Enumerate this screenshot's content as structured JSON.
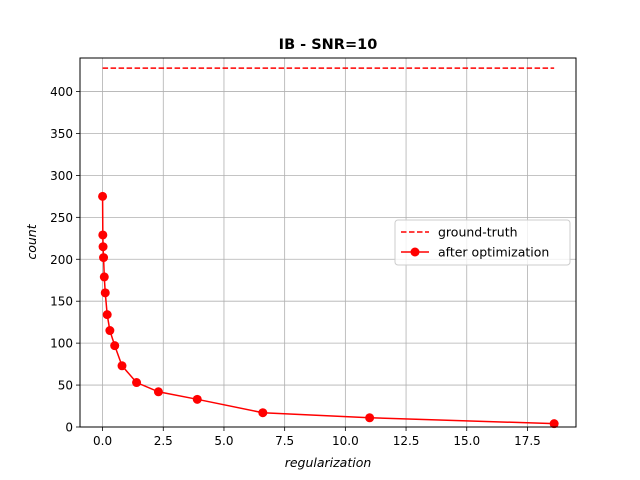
{
  "chart_data": {
    "type": "line",
    "title": "IB - SNR=10",
    "xlabel": "regularization",
    "ylabel": "count",
    "xlim": [
      -0.93,
      19.5
    ],
    "ylim": [
      0,
      440
    ],
    "xticks": [
      0.0,
      2.5,
      5.0,
      7.5,
      10.0,
      12.5,
      15.0,
      17.5
    ],
    "xtick_labels": [
      "0.0",
      "2.5",
      "5.0",
      "7.5",
      "10.0",
      "12.5",
      "15.0",
      "17.5"
    ],
    "yticks": [
      0,
      50,
      100,
      150,
      200,
      250,
      300,
      350,
      400
    ],
    "ytick_labels": [
      "0",
      "50",
      "100",
      "150",
      "200",
      "250",
      "300",
      "350",
      "400"
    ],
    "grid": true,
    "legend_position": "center-right",
    "series": [
      {
        "name": "ground-truth",
        "style": "dashed",
        "marker": false,
        "color": "#ff0000",
        "x": [
          0.0,
          18.6
        ],
        "y": [
          428,
          428
        ]
      },
      {
        "name": "after optimization",
        "style": "solid",
        "marker": true,
        "color": "#ff0000",
        "x": [
          0.0,
          0.01,
          0.02,
          0.04,
          0.07,
          0.11,
          0.19,
          0.3,
          0.5,
          0.8,
          1.4,
          2.3,
          3.9,
          6.6,
          11.0,
          18.6
        ],
        "y": [
          275,
          229,
          215,
          202,
          179,
          160,
          134,
          115,
          97,
          73,
          53,
          42,
          33,
          17,
          11,
          4
        ]
      }
    ]
  }
}
